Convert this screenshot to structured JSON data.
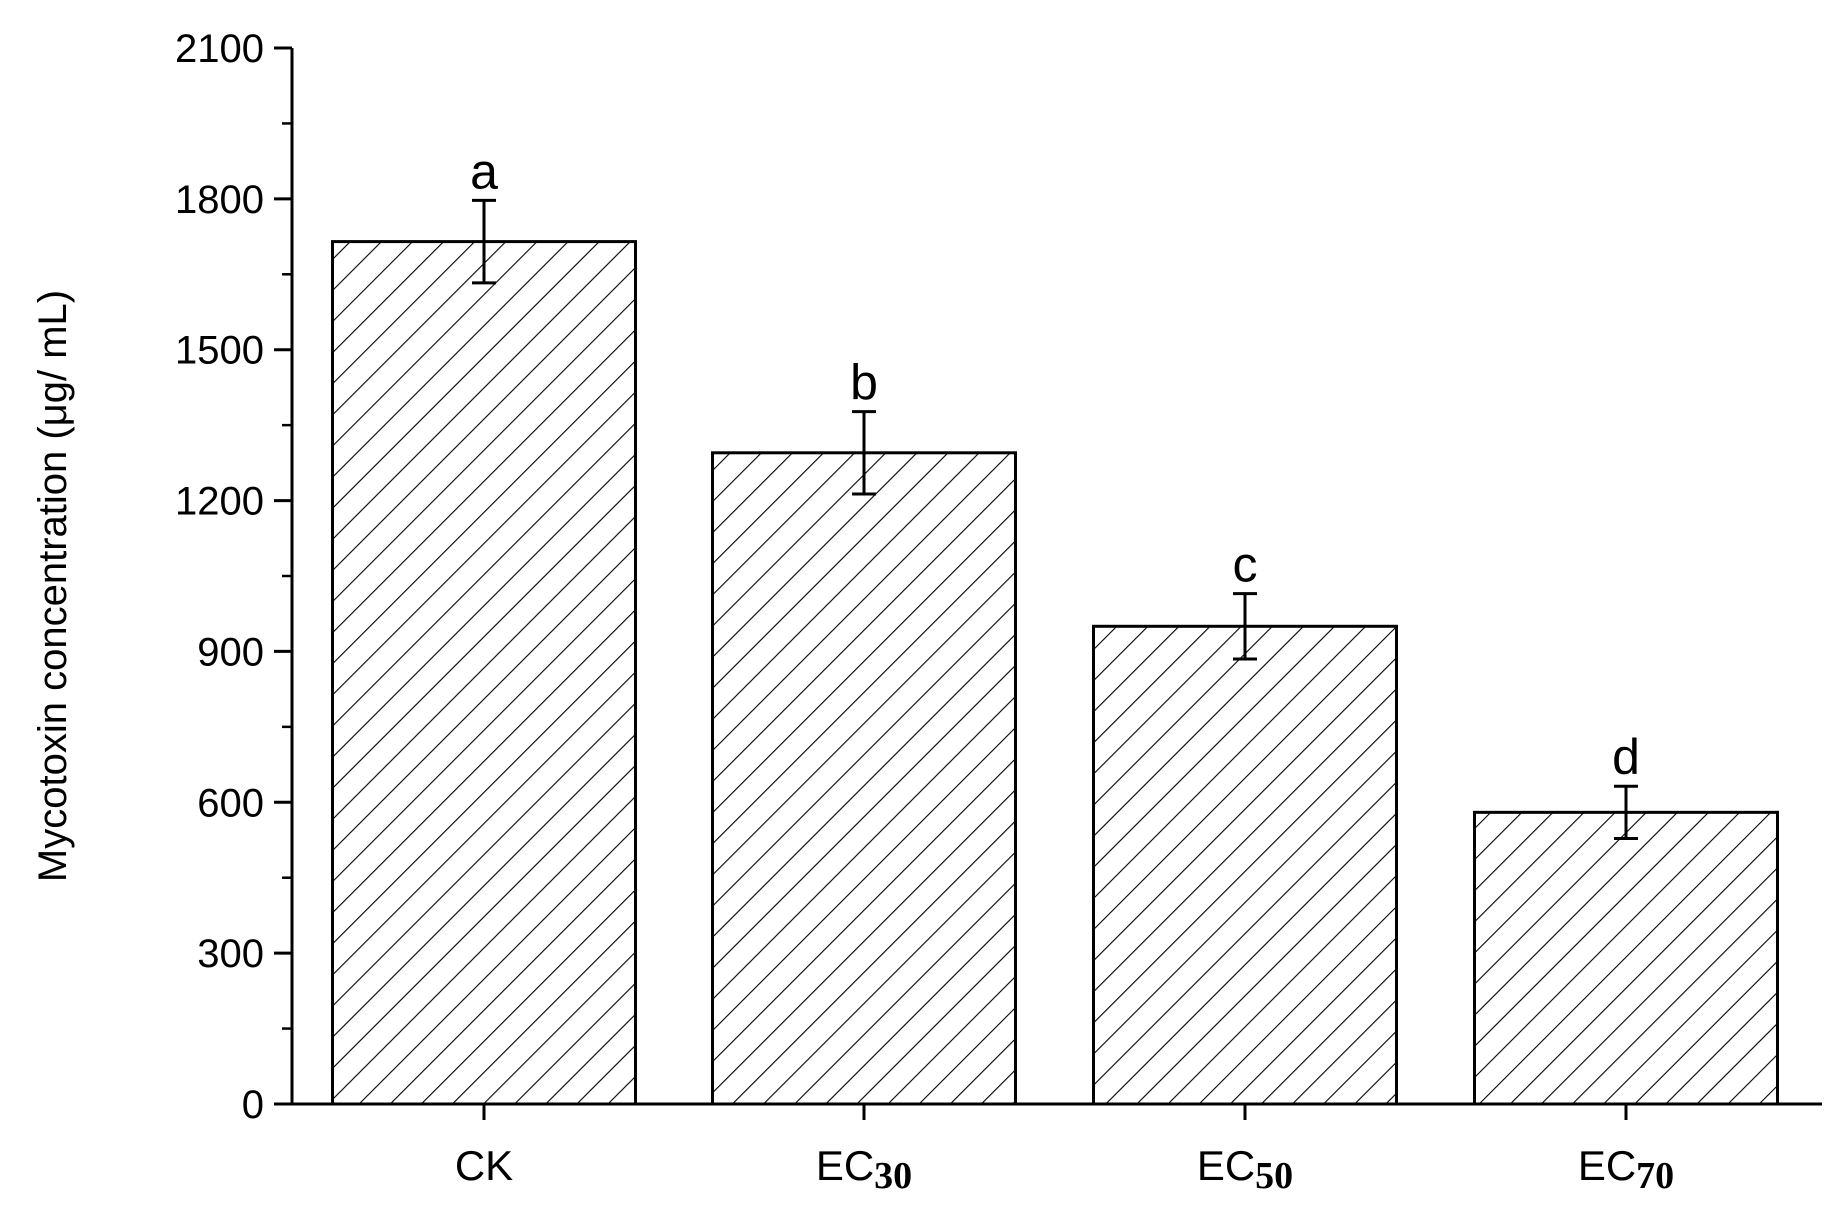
{
  "chart_data": {
    "type": "bar",
    "title": "",
    "xlabel": "",
    "ylabel": "Mycotoxin concentration (μg/ mL)",
    "ylim": [
      0,
      2100
    ],
    "yticks": [
      0,
      300,
      600,
      900,
      1200,
      1500,
      1800,
      2100
    ],
    "categories": [
      {
        "main": "CK",
        "sub": ""
      },
      {
        "main": "EC",
        "sub": "30"
      },
      {
        "main": "EC",
        "sub": "50"
      },
      {
        "main": "EC",
        "sub": "70"
      }
    ],
    "values": [
      1715,
      1295,
      950,
      580
    ],
    "errors": [
      82,
      82,
      65,
      52
    ],
    "significance_letters": [
      "a",
      "b",
      "c",
      "d"
    ],
    "bar_fill": "hatched",
    "colors": {
      "bar_edge": "#000000",
      "hatch": "#000000",
      "background": "#ffffff"
    },
    "grid": false,
    "legend": "none"
  }
}
